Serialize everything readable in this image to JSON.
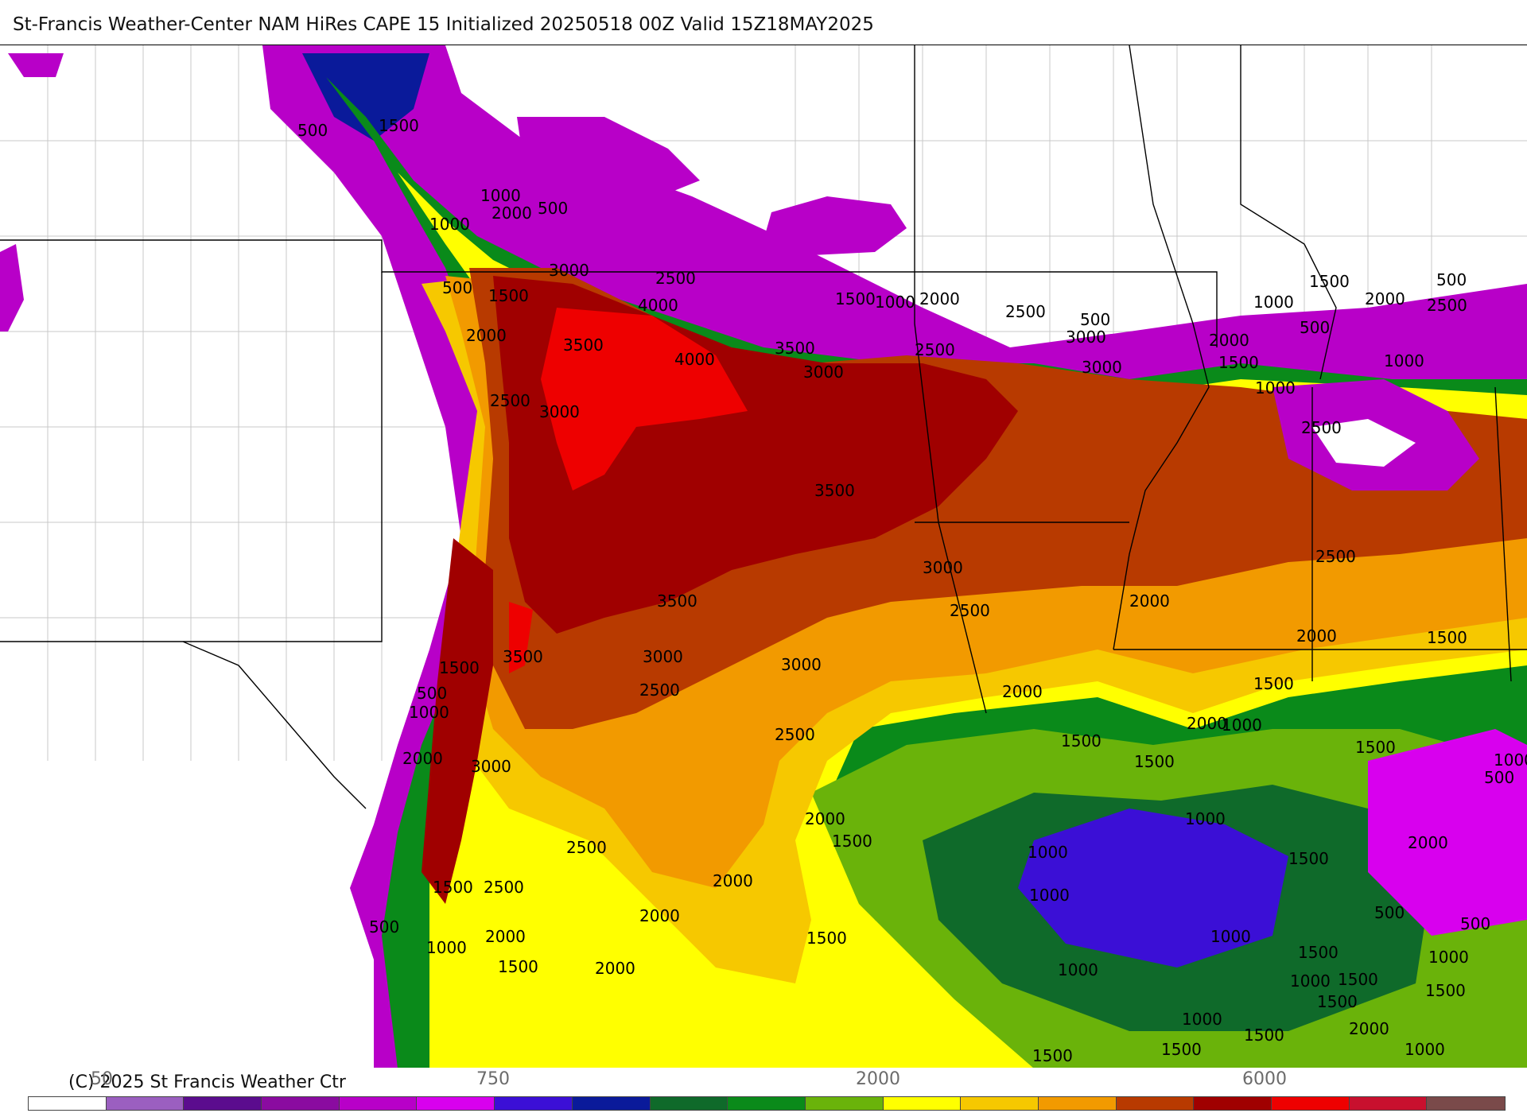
{
  "header": {
    "title": "St-Francis Weather-Center NAM HiRes CAPE  15 Initialized 20250518 00Z Valid 15Z18MAY2025"
  },
  "footer": {
    "copyright": "(C) 2025 St Francis Weather Ctr"
  },
  "colorbar": {
    "tick_labels": [
      "50",
      "750",
      "2000",
      "6000"
    ],
    "colors": [
      "#ffffff",
      "#9b5fc0",
      "#5b0c8e",
      "#8a0ba0",
      "#b800c8",
      "#d800ee",
      "#3b0fd6",
      "#0a1a9a",
      "#0f6a2a",
      "#0a8a1a",
      "#6ab30a",
      "#ffff00",
      "#f6c800",
      "#f29a00",
      "#b83a00",
      "#a00000",
      "#ee0000",
      "#c8102e",
      "#7a4a4a",
      "#8c8c8c",
      "#a7d8e6"
    ]
  },
  "map": {
    "contour_labels": [
      "500",
      "1500",
      "1000",
      "2000",
      "500",
      "1000",
      "500",
      "1500",
      "2000",
      "3000",
      "2500",
      "4000",
      "3500",
      "4000",
      "3500",
      "3000",
      "2500",
      "3000",
      "1500",
      "1000",
      "2000",
      "2500",
      "500",
      "3000",
      "2500",
      "3000",
      "1500",
      "1000",
      "500",
      "2000",
      "1000",
      "1500",
      "500",
      "2000",
      "2500",
      "1000",
      "2500",
      "2500",
      "3500",
      "3500",
      "3000",
      "2500",
      "2000",
      "2000",
      "1500",
      "1500",
      "3500",
      "3000",
      "2500",
      "3000",
      "2500",
      "2000",
      "500",
      "1000",
      "2000",
      "2000",
      "1000",
      "1500",
      "1500",
      "3000",
      "1500",
      "1500",
      "1000",
      "1000",
      "500",
      "2500",
      "2000",
      "1500",
      "2500",
      "2000",
      "1500",
      "2000",
      "1000",
      "1500",
      "2000",
      "1500",
      "1000",
      "1000",
      "500",
      "500",
      "1000",
      "2000",
      "1500",
      "1500",
      "1000",
      "500",
      "2000",
      "1000",
      "1500",
      "1000",
      "1500",
      "1500",
      "1000",
      "2000",
      "1500",
      "1000",
      "1500",
      "1500"
    ]
  }
}
